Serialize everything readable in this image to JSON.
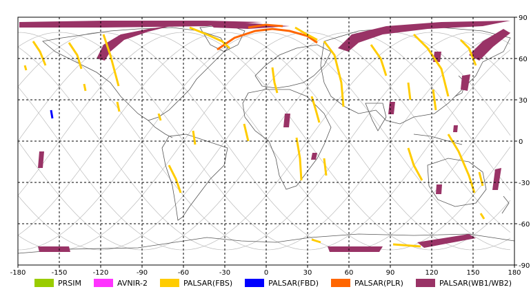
{
  "map": {
    "lon_ticks": [
      "-180",
      "-150",
      "-120",
      "-90",
      "-60",
      "-30",
      "0",
      "30",
      "60",
      "90",
      "120",
      "150",
      "180"
    ],
    "lat_ticks": [
      "90",
      "60",
      "30",
      "0",
      "-30",
      "-60",
      "-90"
    ],
    "lon_range": [
      -180,
      180
    ],
    "lat_range": [
      -90,
      90
    ],
    "grid": "dashed",
    "background": "#ffffff"
  },
  "legend": [
    {
      "label": "PRSIM",
      "color": "#99cc00"
    },
    {
      "label": "AVNIR-2",
      "color": "#ff33ff"
    },
    {
      "label": "PALSAR(FBS)",
      "color": "#ffcc00"
    },
    {
      "label": "PALSAR(FBD)",
      "color": "#0000ff"
    },
    {
      "label": "PALSAR(PLR)",
      "color": "#ff6600"
    },
    {
      "label": "PALSAR(WB1/WB2)",
      "color": "#993366"
    }
  ],
  "colors": {
    "fbs": "#ffcc00",
    "fbd": "#0000ff",
    "plr": "#ff6600",
    "wb": "#993366",
    "orbit": "#bbbbbb",
    "coast": "#555555"
  }
}
